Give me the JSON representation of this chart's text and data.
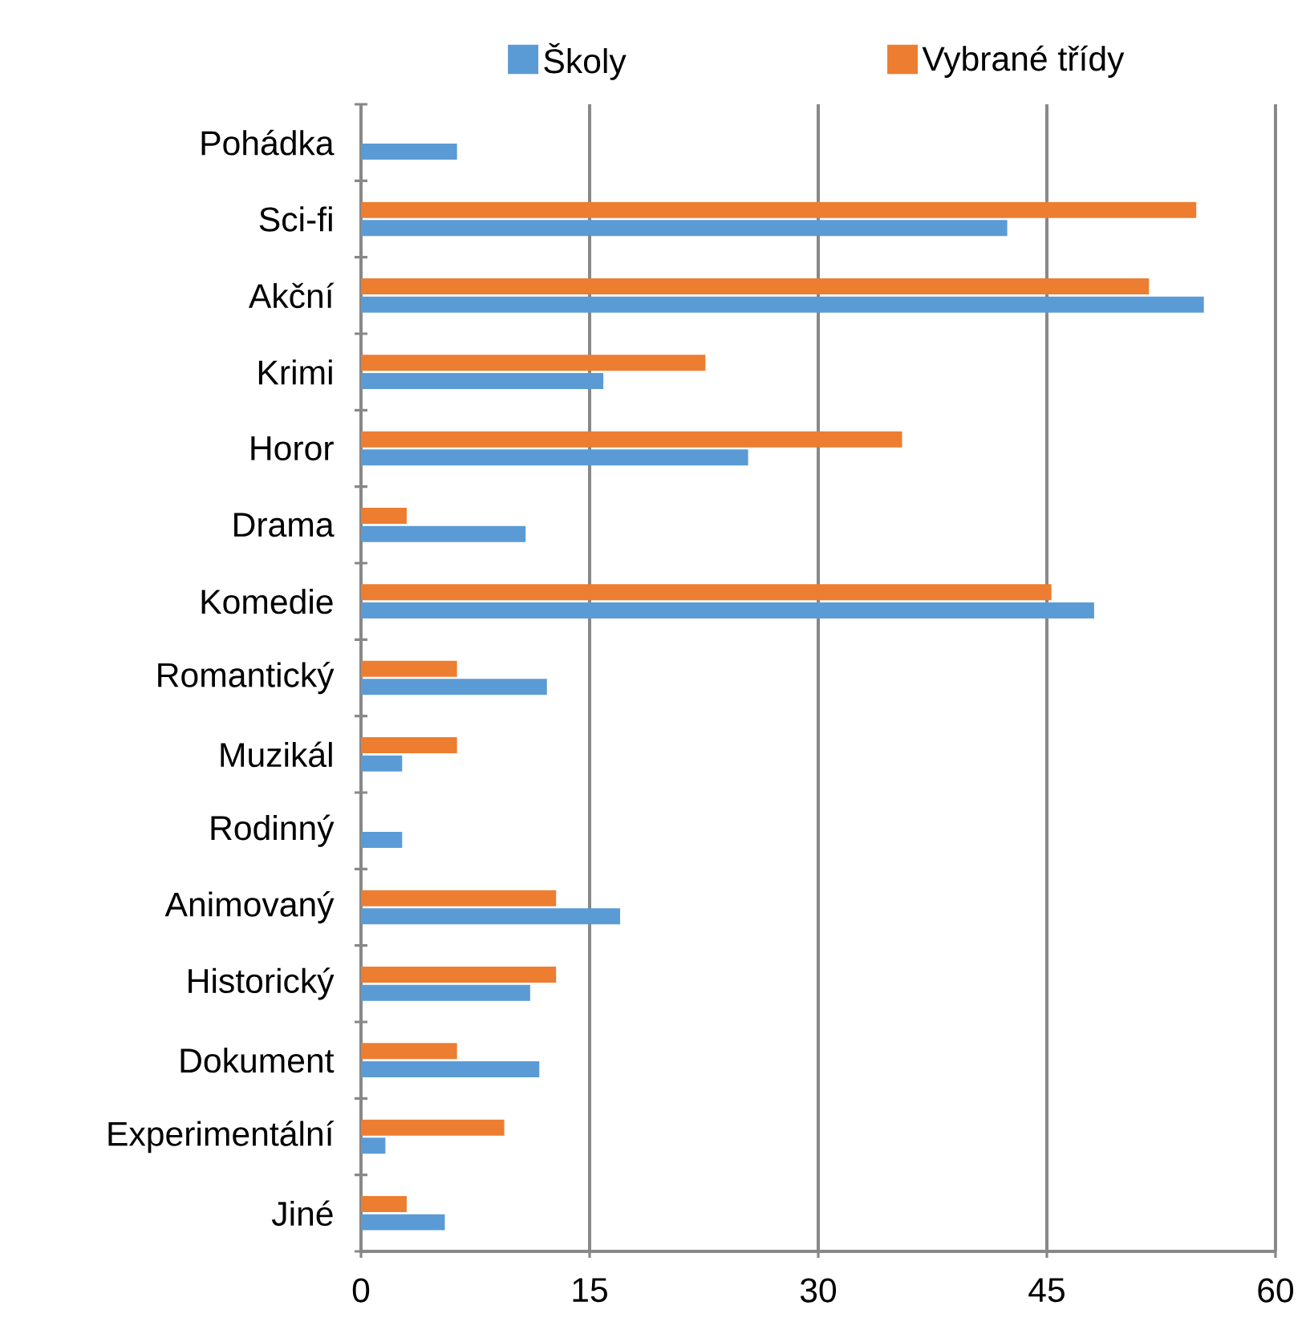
{
  "chart_data": {
    "type": "bar",
    "orientation": "horizontal",
    "categories": [
      "Pohádka",
      "Sci-fi",
      "Akční",
      "Krimi",
      "Horor",
      "Drama",
      "Komedie",
      "Romantický",
      "Muzikál",
      "Rodinný",
      "Animovaný",
      "Historický",
      "Dokument",
      "Experimentální",
      "Jiné"
    ],
    "series": [
      {
        "name": "Školy",
        "color": "#5b9bd5",
        "values": [
          6.3,
          42.4,
          55.3,
          15.9,
          25.4,
          10.8,
          48.1,
          12.2,
          2.7,
          2.7,
          17.0,
          11.1,
          11.7,
          1.6,
          5.5
        ]
      },
      {
        "name": "Vybrané třídy",
        "color": "#ed7d31",
        "values": [
          null,
          54.8,
          51.7,
          22.6,
          35.5,
          3.0,
          45.3,
          6.3,
          6.3,
          null,
          12.8,
          12.8,
          6.3,
          9.4,
          3.0
        ]
      }
    ],
    "xlim": [
      0,
      60
    ],
    "xticks": [
      0,
      15,
      30,
      45,
      60
    ],
    "grid": "x",
    "legend": "top"
  }
}
